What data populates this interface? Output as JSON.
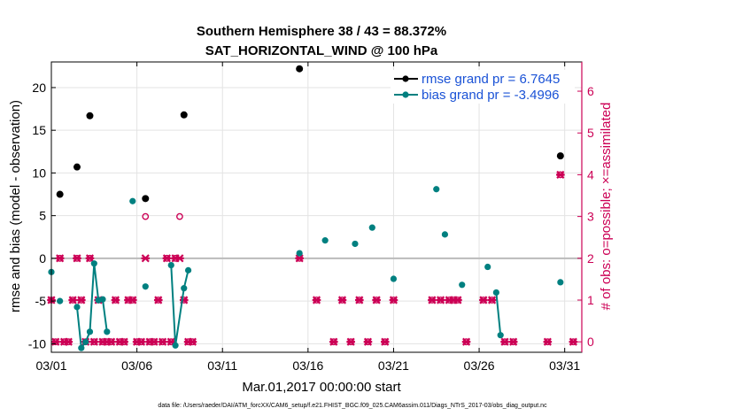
{
  "chart_data": {
    "type": "scatter",
    "title_line1": "Southern Hemisphere 38 / 43 = 88.372%",
    "title_line2": "SAT_HORIZONTAL_WIND @ 100 hPa",
    "xlabel": "Mar.01,2017 00:00:00 start",
    "ylabel_left": "rmse and bias (model - observation)",
    "ylabel_right": "# of obs: o=possible; ×=assimilated",
    "footnote": "data file: /Users/raeder/DAI/ATM_forcXX/CAM6_setup/f.e21.FHIST_BGC.f09_025.CAM6assim.011/Diags_NTrS_2017-03/obs_diag_output.nc",
    "xlim": [
      1,
      32
    ],
    "ylim_left": [
      -11,
      23
    ],
    "ylim_right": [
      -0.25,
      6.7
    ],
    "x_ticks": [
      1,
      6,
      11,
      16,
      21,
      26,
      31
    ],
    "x_tick_labels": [
      "03/01",
      "03/06",
      "03/11",
      "03/16",
      "03/21",
      "03/26",
      "03/31"
    ],
    "y_ticks_left": [
      -10,
      -5,
      0,
      5,
      10,
      15,
      20
    ],
    "y_tick_labels_left": [
      "-10",
      "-5",
      "0",
      "5",
      "10",
      "15",
      "20"
    ],
    "y_ticks_right": [
      0,
      1,
      2,
      3,
      4,
      5,
      6
    ],
    "y_tick_labels_right": [
      "0",
      "1",
      "2",
      "3",
      "4",
      "5",
      "6"
    ],
    "zero_line": 0,
    "colors": {
      "rmse": "#000000",
      "bias": "#008080",
      "obs": "#cc0055",
      "zero": "#bbbbbb",
      "grid": "#e3e3e3"
    },
    "series": [
      {
        "name": "rmse",
        "label": "rmse grand pr = 6.7645",
        "points": [
          [
            1.5,
            7.5
          ],
          [
            2.5,
            10.7
          ],
          [
            3.25,
            16.7
          ],
          [
            6.5,
            7.0
          ],
          [
            8.75,
            16.8
          ],
          [
            15.5,
            22.2
          ],
          [
            30.75,
            12.0
          ]
        ]
      },
      {
        "name": "bias",
        "label": "bias grand pr = -3.4996",
        "segments": [
          [
            [
              1.0,
              -1.6
            ]
          ],
          [
            [
              1.5,
              -5.0
            ]
          ],
          [
            [
              2.5,
              -5.7
            ],
            [
              2.75,
              -10.5
            ],
            [
              3.0,
              -9.8
            ],
            [
              3.25,
              -8.6
            ],
            [
              3.5,
              -0.6
            ],
            [
              3.75,
              -4.9
            ],
            [
              4.0,
              -4.8
            ],
            [
              4.25,
              -8.6
            ]
          ],
          [
            [
              5.75,
              6.7
            ]
          ],
          [
            [
              6.5,
              -3.3
            ]
          ],
          [
            [
              8.0,
              -0.8
            ],
            [
              8.25,
              -10.2
            ],
            [
              8.75,
              -3.5
            ],
            [
              9.0,
              -1.4
            ]
          ],
          [
            [
              15.5,
              0.6
            ]
          ],
          [
            [
              17.0,
              2.1
            ]
          ],
          [
            [
              18.75,
              1.7
            ]
          ],
          [
            [
              19.75,
              3.6
            ]
          ],
          [
            [
              21.0,
              -2.4
            ]
          ],
          [
            [
              23.5,
              8.1
            ]
          ],
          [
            [
              24.0,
              2.8
            ]
          ],
          [
            [
              25.0,
              -3.1
            ]
          ],
          [
            [
              26.5,
              -1.0
            ]
          ],
          [
            [
              27.0,
              -4.0
            ],
            [
              27.25,
              -9.0
            ]
          ],
          [
            [
              30.75,
              -2.8
            ]
          ]
        ]
      }
    ],
    "obs_possible": [
      [
        1.0,
        1
      ],
      [
        1.25,
        0
      ],
      [
        1.5,
        2
      ],
      [
        1.75,
        0
      ],
      [
        2.0,
        0
      ],
      [
        2.25,
        1
      ],
      [
        2.5,
        2
      ],
      [
        2.75,
        1
      ],
      [
        3.0,
        0
      ],
      [
        3.25,
        2
      ],
      [
        3.5,
        0
      ],
      [
        3.75,
        1
      ],
      [
        4.0,
        0
      ],
      [
        4.25,
        0
      ],
      [
        4.5,
        0
      ],
      [
        4.75,
        1
      ],
      [
        5.0,
        0
      ],
      [
        5.25,
        0
      ],
      [
        5.5,
        1
      ],
      [
        5.75,
        1
      ],
      [
        6.0,
        0
      ],
      [
        6.25,
        0
      ],
      [
        6.5,
        3
      ],
      [
        6.75,
        0
      ],
      [
        7.0,
        0
      ],
      [
        7.25,
        1
      ],
      [
        7.5,
        0
      ],
      [
        7.75,
        2
      ],
      [
        8.0,
        0
      ],
      [
        8.25,
        2
      ],
      [
        8.5,
        3
      ],
      [
        8.75,
        1
      ],
      [
        9.0,
        0
      ],
      [
        9.25,
        0
      ],
      [
        15.5,
        2
      ],
      [
        16.5,
        1
      ],
      [
        17.5,
        0
      ],
      [
        18.0,
        1
      ],
      [
        18.5,
        0
      ],
      [
        19.0,
        1
      ],
      [
        19.5,
        0
      ],
      [
        20.0,
        1
      ],
      [
        20.5,
        0
      ],
      [
        21.0,
        1
      ],
      [
        23.25,
        1
      ],
      [
        23.75,
        1
      ],
      [
        24.25,
        1
      ],
      [
        24.5,
        1
      ],
      [
        24.75,
        1
      ],
      [
        25.25,
        0
      ],
      [
        26.25,
        1
      ],
      [
        26.75,
        1
      ],
      [
        27.5,
        0
      ],
      [
        28.0,
        0
      ],
      [
        30.0,
        0
      ],
      [
        30.75,
        4
      ],
      [
        31.5,
        0
      ]
    ],
    "obs_assimilated": [
      [
        1.0,
        1
      ],
      [
        1.25,
        0
      ],
      [
        1.5,
        2
      ],
      [
        1.75,
        0
      ],
      [
        2.0,
        0
      ],
      [
        2.25,
        1
      ],
      [
        2.5,
        2
      ],
      [
        2.75,
        1
      ],
      [
        3.0,
        0
      ],
      [
        3.25,
        2
      ],
      [
        3.5,
        0
      ],
      [
        3.75,
        1
      ],
      [
        4.0,
        0
      ],
      [
        4.25,
        0
      ],
      [
        4.5,
        0
      ],
      [
        4.75,
        1
      ],
      [
        5.0,
        0
      ],
      [
        5.25,
        0
      ],
      [
        5.5,
        1
      ],
      [
        5.75,
        1
      ],
      [
        6.0,
        0
      ],
      [
        6.25,
        0
      ],
      [
        6.5,
        2
      ],
      [
        6.75,
        0
      ],
      [
        7.0,
        0
      ],
      [
        7.25,
        1
      ],
      [
        7.5,
        0
      ],
      [
        7.75,
        2
      ],
      [
        8.0,
        0
      ],
      [
        8.25,
        2
      ],
      [
        8.5,
        2
      ],
      [
        8.75,
        1
      ],
      [
        9.0,
        0
      ],
      [
        9.25,
        0
      ],
      [
        15.5,
        2
      ],
      [
        16.5,
        1
      ],
      [
        17.5,
        0
      ],
      [
        18.0,
        1
      ],
      [
        18.5,
        0
      ],
      [
        19.0,
        1
      ],
      [
        19.5,
        0
      ],
      [
        20.0,
        1
      ],
      [
        20.5,
        0
      ],
      [
        21.0,
        1
      ],
      [
        23.25,
        1
      ],
      [
        23.75,
        1
      ],
      [
        24.25,
        1
      ],
      [
        24.5,
        1
      ],
      [
        24.75,
        1
      ],
      [
        25.25,
        0
      ],
      [
        26.25,
        1
      ],
      [
        26.75,
        1
      ],
      [
        27.5,
        0
      ],
      [
        28.0,
        0
      ],
      [
        30.0,
        0
      ],
      [
        30.75,
        4
      ],
      [
        31.5,
        0
      ]
    ]
  }
}
